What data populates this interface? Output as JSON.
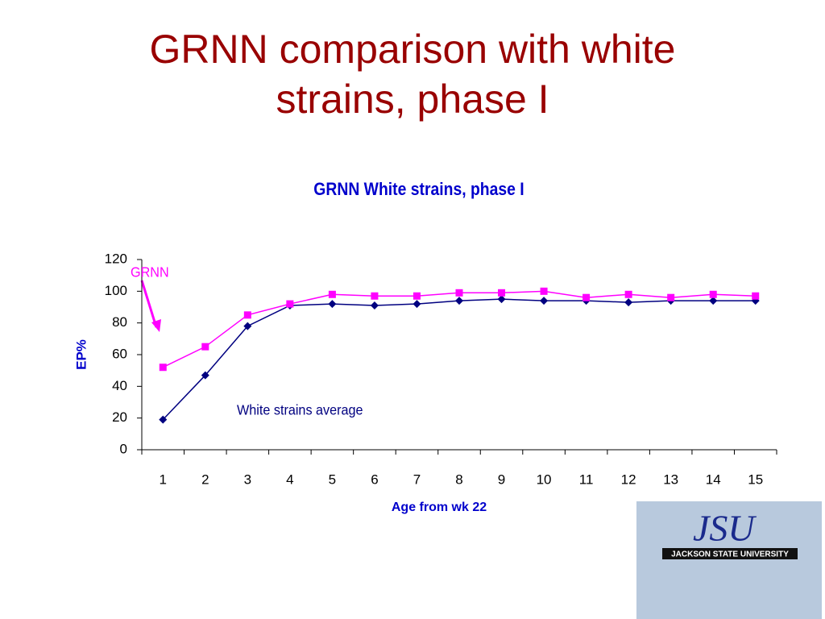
{
  "slide_title": "GRNN comparison with white strains, phase I",
  "chart_data": {
    "type": "line",
    "title": "GRNN White strains, phase I",
    "x_label": "Age from wk 22",
    "y_label": "EP%",
    "categories": [
      "1",
      "2",
      "3",
      "4",
      "5",
      "6",
      "7",
      "8",
      "9",
      "10",
      "11",
      "12",
      "13",
      "14",
      "15"
    ],
    "series": [
      {
        "name": "White strains average",
        "color": "#000080",
        "marker": "diamond",
        "values": [
          19,
          47,
          78,
          91,
          92,
          91,
          92,
          94,
          95,
          94,
          94,
          93,
          94,
          94,
          94
        ]
      },
      {
        "name": "GRNN",
        "color": "#ff00ff",
        "marker": "square",
        "values": [
          52,
          65,
          85,
          92,
          98,
          97,
          97,
          99,
          99,
          100,
          96,
          98,
          96,
          98,
          97
        ]
      }
    ],
    "ylim": [
      0,
      120
    ],
    "yticks": [
      0,
      20,
      40,
      60,
      80,
      100,
      120
    ],
    "grid": false
  },
  "logo": {
    "mark": "JSU",
    "name": "JACKSON STATE UNIVERSITY"
  }
}
